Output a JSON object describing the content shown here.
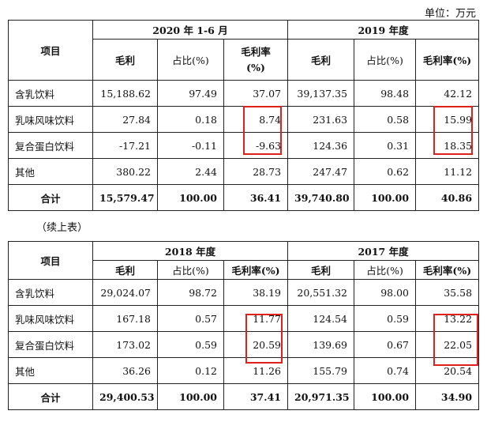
{
  "unit_label": "单位：万元",
  "continued_label": "（续上表）",
  "table1": {
    "item_header": "项目",
    "periods": [
      "2020 年 1-6 月",
      "2019 年度"
    ],
    "columns": [
      "毛利",
      "占比(%)",
      "毛利率\n(%)",
      "毛利",
      "占比(%)",
      "毛利率(%)"
    ],
    "rows": [
      {
        "name": "含乳饮料",
        "values": [
          "15,188.62",
          "97.49",
          "37.07",
          "39,137.35",
          "98.48",
          "42.12"
        ]
      },
      {
        "name": "乳味风味饮料",
        "values": [
          "27.84",
          "0.18",
          "8.74",
          "231.63",
          "0.58",
          "15.99"
        ]
      },
      {
        "name": "复合蛋白饮料",
        "values": [
          "-17.21",
          "-0.11",
          "-9.63",
          "124.36",
          "0.31",
          "18.35"
        ]
      },
      {
        "name": "其他",
        "values": [
          "380.22",
          "2.44",
          "28.73",
          "247.47",
          "0.62",
          "11.12"
        ]
      },
      {
        "name": "合计",
        "values": [
          "15,579.47",
          "100.00",
          "36.41",
          "39,740.80",
          "100.00",
          "40.86"
        ]
      }
    ]
  },
  "table2": {
    "item_header": "项目",
    "periods": [
      "2018 年度",
      "2017 年度"
    ],
    "columns": [
      "毛利",
      "占比(%)",
      "毛利率(%)",
      "毛利",
      "占比(%)",
      "毛利率(%)"
    ],
    "rows": [
      {
        "name": "含乳饮料",
        "values": [
          "29,024.07",
          "98.72",
          "38.19",
          "20,551.32",
          "98.00",
          "35.58"
        ]
      },
      {
        "name": "乳味风味饮料",
        "values": [
          "167.18",
          "0.57",
          "11.77",
          "124.54",
          "0.59",
          "13.22"
        ]
      },
      {
        "name": "复合蛋白饮料",
        "values": [
          "173.02",
          "0.59",
          "20.59",
          "139.69",
          "0.67",
          "22.05"
        ]
      },
      {
        "name": "其他",
        "values": [
          "36.26",
          "0.12",
          "11.26",
          "155.79",
          "0.74",
          "20.54"
        ]
      },
      {
        "name": "合计",
        "values": [
          "29,400.53",
          "100.00",
          "37.41",
          "20,971.35",
          "100.00",
          "34.90"
        ]
      }
    ]
  },
  "highlight_color": "#e0201a"
}
